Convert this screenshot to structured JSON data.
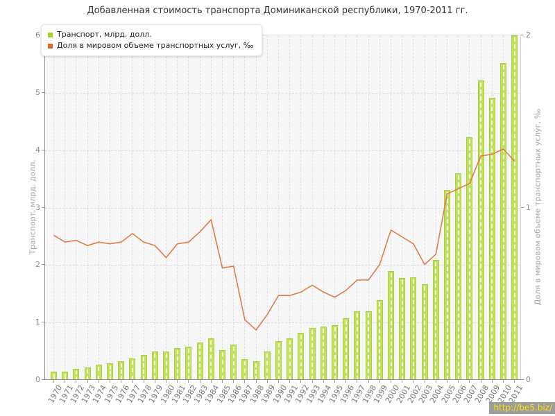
{
  "title": "Добавленная стоимость транспорта Доминиканской республики, 1970-2011 гг.",
  "legend": {
    "items": [
      {
        "label": "Транспорт, млрд. долл.",
        "color": "#a8d129"
      },
      {
        "label": "Доля в мировом объеме транспортных услуг, ‰",
        "color": "#e0662a"
      }
    ]
  },
  "watermark": "http://be5.biz/",
  "colors": {
    "bar_fill": "#c3e05f",
    "bar_border": "#a9cf3e",
    "line": "#e4794a",
    "plot_background": "#f7f7f7"
  },
  "chart_data": {
    "type": "bar",
    "title": "Добавленная стоимость транспорта Доминиканской республики, 1970-2011 гг.",
    "categories": [
      "1970",
      "1971",
      "1972",
      "1973",
      "1974",
      "1975",
      "1976",
      "1977",
      "1978",
      "1979",
      "1980",
      "1981",
      "1982",
      "1983",
      "1984",
      "1985",
      "1986",
      "1987",
      "1988",
      "1989",
      "1990",
      "1991",
      "1992",
      "1993",
      "1994",
      "1995",
      "1996",
      "1997",
      "1998",
      "1999",
      "2000",
      "2001",
      "2002",
      "2003",
      "2004",
      "2005",
      "2006",
      "2007",
      "2008",
      "2009",
      "2010",
      "2011"
    ],
    "series": [
      {
        "name": "Транспорт, млрд. долл.",
        "type": "bar",
        "axis": "left",
        "color": "#c3e05f",
        "values": [
          0.15,
          0.15,
          0.19,
          0.22,
          0.27,
          0.29,
          0.32,
          0.38,
          0.44,
          0.49,
          0.49,
          0.56,
          0.58,
          0.65,
          0.73,
          0.52,
          0.61,
          0.36,
          0.33,
          0.49,
          0.68,
          0.73,
          0.82,
          0.91,
          0.93,
          0.95,
          1.08,
          1.19,
          1.19,
          1.39,
          1.89,
          1.78,
          1.79,
          1.67,
          2.09,
          3.31,
          3.6,
          4.22,
          5.22,
          4.91,
          5.52,
          6.0
        ]
      },
      {
        "name": "Доля в мировом объеме транспортных услуг, ‰",
        "type": "line",
        "axis": "right",
        "color": "#e4794a",
        "values": [
          0.84,
          0.8,
          0.81,
          0.78,
          0.8,
          0.79,
          0.8,
          0.85,
          0.8,
          0.78,
          0.71,
          0.79,
          0.8,
          0.86,
          0.93,
          0.65,
          0.66,
          0.35,
          0.29,
          0.38,
          0.49,
          0.49,
          0.51,
          0.55,
          0.51,
          0.48,
          0.52,
          0.58,
          0.58,
          0.67,
          0.87,
          0.83,
          0.79,
          0.67,
          0.73,
          1.08,
          1.11,
          1.14,
          1.3,
          1.31,
          1.34,
          1.27
        ]
      }
    ],
    "left_axis": {
      "label": "Транспорт, млрд. долл.",
      "min": 0,
      "max": 6,
      "ticks": [
        0,
        1,
        2,
        3,
        4,
        5,
        6
      ]
    },
    "right_axis": {
      "label": "Доля в мировом объеме транспортных услуг, ‰",
      "min": 0,
      "max": 2,
      "ticks": [
        0,
        1,
        2
      ]
    },
    "grid": true,
    "legend_position": "top-left"
  }
}
